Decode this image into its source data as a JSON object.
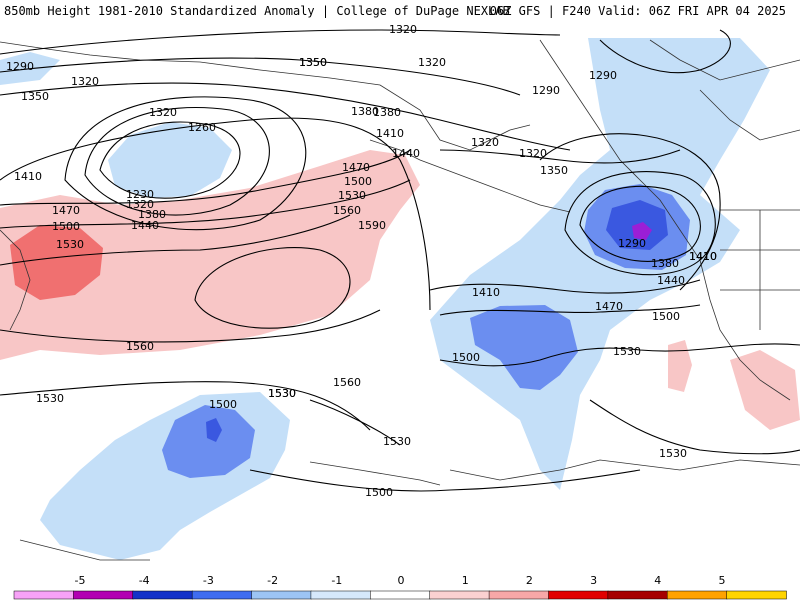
{
  "title": {
    "left": "850mb Height 1981-2010 Standardized Anomaly | College of DuPage NEXLAB",
    "right": "06Z GFS | F240 Valid: 06Z FRI APR 04 2025"
  },
  "map": {
    "contour_labels": [
      "1320",
      "1290",
      "1320",
      "1350",
      "1350",
      "1320",
      "1260",
      "1230",
      "1350",
      "1320",
      "1380",
      "1410",
      "1380",
      "1320",
      "1290",
      "1320",
      "1290",
      "1440",
      "1410",
      "1470",
      "1500",
      "1530",
      "1560",
      "1590",
      "1410",
      "1470",
      "1500",
      "1530",
      "1440",
      "1320",
      "1380",
      "1350",
      "1290",
      "1380",
      "1410",
      "1440",
      "1410",
      "1500",
      "1470",
      "1500",
      "1530",
      "1560",
      "1560",
      "1530",
      "1500",
      "1530",
      "1530",
      "1530",
      "1500",
      "1530"
    ],
    "colors": {
      "neg_1": "#c4dff8",
      "neg_2": "#6b8ef0",
      "neg_3": "#3a58e0",
      "neg_4": "#9b1fd6",
      "pos_1": "#f8c6c6",
      "pos_2": "#f07070",
      "contour": "#000000",
      "coast": "#333333"
    }
  },
  "colorbar": {
    "ticks": [
      "-5",
      "-4",
      "-3",
      "-2",
      "-1",
      "0",
      "1",
      "2",
      "3",
      "4",
      "5"
    ],
    "colors": [
      "#f7a2f7",
      "#b200b2",
      "#1432c8",
      "#3f6df0",
      "#9cc4f4",
      "#d6e8fb",
      "#ffffff",
      "#fbd1d1",
      "#f7a7a7",
      "#e10000",
      "#a60000",
      "#ffa200",
      "#ffd400"
    ]
  }
}
